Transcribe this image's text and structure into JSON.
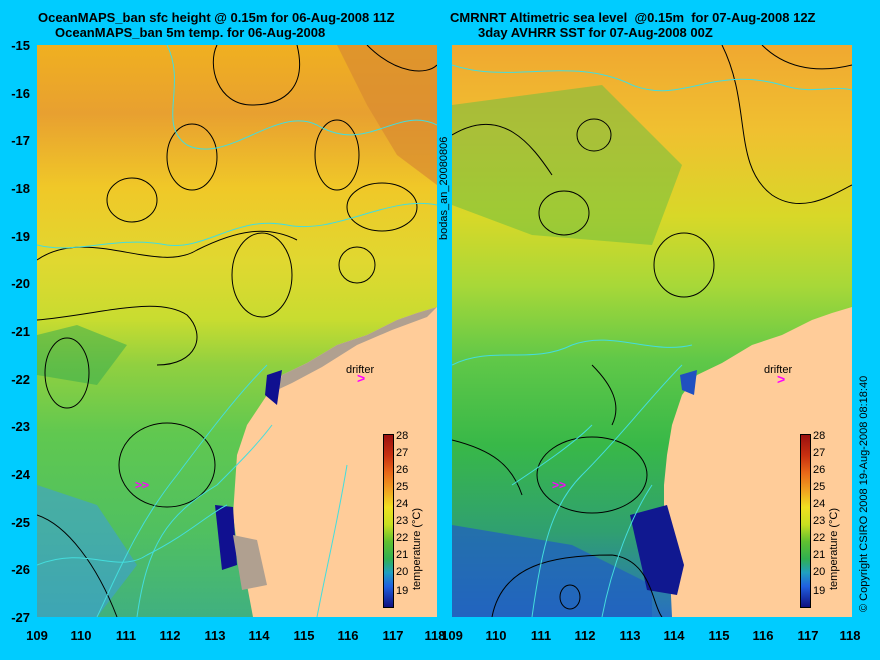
{
  "left_title": {
    "line1": "OceanMAPS_ban sfc height @ 0.15m for 06-Aug-2008 11Z",
    "line2": "OceanMAPS_ban 5m temp. for 06-Aug-2008"
  },
  "right_title": {
    "line1": "CMRNRT Altimetric sea level  @0.15m  for 07-Aug-2008 12Z",
    "line2": "3day AVHRR SST for 07-Aug-2008 00Z"
  },
  "y_ticks": [
    "-15",
    "-16",
    "-17",
    "-18",
    "-19",
    "-20",
    "-21",
    "-22",
    "-23",
    "-24",
    "-25",
    "-26",
    "-27"
  ],
  "x_ticks": [
    "109",
    "110",
    "111",
    "112",
    "113",
    "114",
    "115",
    "116",
    "117",
    "118"
  ],
  "middle_label": "bodas_an_20080806",
  "right_label": "© Copyright CSIRO 2008   19-Aug-2008 08:18:40",
  "drifter_label": "drifter",
  "colorbar": {
    "title": "temperature (°C)",
    "labels": [
      "28",
      "27",
      "26",
      "25",
      "24",
      "23",
      "22",
      "21",
      "20",
      "19"
    ]
  },
  "colors": {
    "background": "#00ccff",
    "land": "#ffcc99",
    "shelf_grey": "#b0a090",
    "contour_black": "#000000",
    "contour_cyan": "#44dddd",
    "drifter_magenta": "#ff00ff"
  }
}
